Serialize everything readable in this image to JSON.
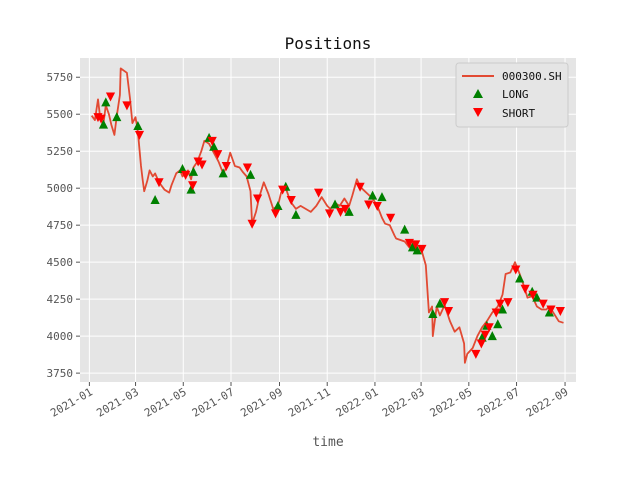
{
  "chart_data": {
    "type": "line",
    "title": "Positions",
    "xlabel": "time",
    "ylabel": "",
    "x_range": [
      "2020-12-20",
      "2022-09-15"
    ],
    "ylim": [
      3690,
      5880
    ],
    "grid": true,
    "legend_position": "top-right",
    "x_tick_labels": [
      "2021-01",
      "2021-03",
      "2021-05",
      "2021-07",
      "2021-09",
      "2021-11",
      "2022-01",
      "2022-03",
      "2022-05",
      "2022-07",
      "2022-09"
    ],
    "x_tick_dates": [
      "2021-01-01",
      "2021-03-01",
      "2021-05-01",
      "2021-07-01",
      "2021-09-01",
      "2021-11-01",
      "2022-01-01",
      "2022-03-01",
      "2022-05-01",
      "2022-07-01",
      "2022-09-01"
    ],
    "y_ticks": [
      3750,
      4000,
      4250,
      4500,
      4750,
      5000,
      5250,
      5500,
      5750
    ],
    "y_tick_labels": [
      "3750",
      "4000",
      "4250",
      "4500",
      "4750",
      "5000",
      "5250",
      "5500",
      "5750"
    ],
    "colors": {
      "line": "#e24a33",
      "long": "#008000",
      "short": "#ff0000",
      "background": "#e5e5e5",
      "grid": "#ffffff"
    },
    "series": [
      {
        "name": "000300.SH",
        "kind": "line",
        "x": [
          "2021-01-04",
          "2021-01-08",
          "2021-01-12",
          "2021-01-15",
          "2021-01-19",
          "2021-01-22",
          "2021-01-26",
          "2021-01-29",
          "2021-02-02",
          "2021-02-05",
          "2021-02-09",
          "2021-02-10",
          "2021-02-18",
          "2021-02-22",
          "2021-02-25",
          "2021-03-01",
          "2021-03-04",
          "2021-03-08",
          "2021-03-10",
          "2021-03-12",
          "2021-03-16",
          "2021-03-19",
          "2021-03-23",
          "2021-03-26",
          "2021-03-31",
          "2021-04-07",
          "2021-04-13",
          "2021-04-16",
          "2021-04-22",
          "2021-04-27",
          "2021-04-30",
          "2021-05-07",
          "2021-05-11",
          "2021-05-14",
          "2021-05-19",
          "2021-05-24",
          "2021-05-28",
          "2021-06-03",
          "2021-06-09",
          "2021-06-15",
          "2021-06-21",
          "2021-06-25",
          "2021-06-30",
          "2021-07-06",
          "2021-07-12",
          "2021-07-16",
          "2021-07-21",
          "2021-07-26",
          "2021-07-28",
          "2021-08-02",
          "2021-08-06",
          "2021-08-12",
          "2021-08-18",
          "2021-08-24",
          "2021-08-30",
          "2021-09-03",
          "2021-09-09",
          "2021-09-15",
          "2021-09-22",
          "2021-09-28",
          "2021-10-11",
          "2021-10-18",
          "2021-10-25",
          "2021-11-01",
          "2021-11-05",
          "2021-11-11",
          "2021-11-17",
          "2021-11-23",
          "2021-11-29",
          "2021-12-03",
          "2021-12-09",
          "2021-12-13",
          "2021-12-17",
          "2021-12-23",
          "2021-12-29",
          "2022-01-04",
          "2022-01-10",
          "2022-01-14",
          "2022-01-20",
          "2022-01-26",
          "2022-01-28",
          "2022-02-08",
          "2022-02-14",
          "2022-02-18",
          "2022-02-24",
          "2022-03-01",
          "2022-03-07",
          "2022-03-11",
          "2022-03-15",
          "2022-03-16",
          "2022-03-21",
          "2022-03-25",
          "2022-03-31",
          "2022-04-07",
          "2022-04-13",
          "2022-04-19",
          "2022-04-25",
          "2022-04-26",
          "2022-04-29",
          "2022-05-06",
          "2022-05-12",
          "2022-05-18",
          "2022-05-24",
          "2022-05-31",
          "2022-06-07",
          "2022-06-13",
          "2022-06-17",
          "2022-06-23",
          "2022-06-29",
          "2022-07-05",
          "2022-07-11",
          "2022-07-15",
          "2022-07-21",
          "2022-07-27",
          "2022-08-02",
          "2022-08-08",
          "2022-08-12",
          "2022-08-18",
          "2022-08-24",
          "2022-08-30"
        ],
        "y": [
          5490,
          5460,
          5600,
          5470,
          5440,
          5560,
          5500,
          5430,
          5360,
          5490,
          5630,
          5810,
          5780,
          5600,
          5440,
          5480,
          5380,
          5150,
          5060,
          4980,
          5050,
          5120,
          5080,
          5100,
          5040,
          4990,
          4970,
          5020,
          5100,
          5120,
          5080,
          5120,
          5060,
          5140,
          5180,
          5250,
          5320,
          5300,
          5240,
          5180,
          5100,
          5140,
          5240,
          5150,
          5140,
          5110,
          5080,
          4980,
          4760,
          4840,
          4940,
          5040,
          4960,
          4860,
          4880,
          4970,
          5000,
          4910,
          4860,
          4880,
          4840,
          4880,
          4940,
          4880,
          4860,
          4900,
          4880,
          4930,
          4880,
          4950,
          5060,
          5010,
          4990,
          4960,
          4930,
          4880,
          4800,
          4760,
          4750,
          4680,
          4660,
          4640,
          4600,
          4620,
          4560,
          4590,
          4480,
          4160,
          4200,
          4000,
          4200,
          4140,
          4210,
          4100,
          4030,
          4060,
          3950,
          3820,
          3880,
          3920,
          4000,
          4060,
          4100,
          4160,
          4200,
          4280,
          4420,
          4430,
          4500,
          4420,
          4330,
          4260,
          4270,
          4200,
          4180,
          4180,
          4200,
          4150,
          4100,
          4090
        ]
      },
      {
        "name": "LONG",
        "kind": "markers",
        "x": [
          "2021-01-19",
          "2021-01-22",
          "2021-02-05",
          "2021-03-04",
          "2021-03-26",
          "2021-04-30",
          "2021-05-11",
          "2021-05-14",
          "2021-06-03",
          "2021-06-09",
          "2021-06-21",
          "2021-07-26",
          "2021-08-30",
          "2021-09-09",
          "2021-09-22",
          "2021-11-11",
          "2021-11-29",
          "2021-12-29",
          "2022-01-10",
          "2022-02-08",
          "2022-02-18",
          "2022-02-24",
          "2022-03-16",
          "2022-03-25",
          "2022-05-18",
          "2022-05-24",
          "2022-05-31",
          "2022-06-07",
          "2022-06-13",
          "2022-07-05",
          "2022-07-21",
          "2022-07-27",
          "2022-08-12"
        ],
        "y": [
          5430,
          5580,
          5480,
          5420,
          4920,
          5130,
          4990,
          5110,
          5340,
          5280,
          5100,
          5090,
          4880,
          5010,
          4820,
          4890,
          4840,
          4950,
          4940,
          4720,
          4600,
          4580,
          4150,
          4220,
          3990,
          4070,
          4000,
          4080,
          4180,
          4390,
          4300,
          4260,
          4160
        ]
      },
      {
        "name": "SHORT",
        "kind": "markers",
        "x": [
          "2021-01-12",
          "2021-01-16",
          "2021-01-28",
          "2021-02-18",
          "2021-03-06",
          "2021-03-31",
          "2021-05-04",
          "2021-05-13",
          "2021-05-20",
          "2021-05-25",
          "2021-06-07",
          "2021-06-14",
          "2021-06-25",
          "2021-07-22",
          "2021-07-28",
          "2021-08-04",
          "2021-08-27",
          "2021-09-05",
          "2021-09-16",
          "2021-10-21",
          "2021-11-04",
          "2021-11-18",
          "2021-11-24",
          "2021-12-13",
          "2021-12-24",
          "2022-01-04",
          "2022-01-21",
          "2022-02-14",
          "2022-02-22",
          "2022-03-02",
          "2022-03-31",
          "2022-04-05",
          "2022-05-10",
          "2022-05-17",
          "2022-05-22",
          "2022-05-27",
          "2022-06-05",
          "2022-06-10",
          "2022-06-20",
          "2022-06-30",
          "2022-07-12",
          "2022-07-22",
          "2022-08-04",
          "2022-08-14",
          "2022-08-26"
        ],
        "y": [
          5480,
          5470,
          5620,
          5560,
          5360,
          5040,
          5090,
          5020,
          5180,
          5160,
          5320,
          5230,
          5150,
          5140,
          4760,
          4930,
          4830,
          4990,
          4920,
          4970,
          4830,
          4840,
          4860,
          5010,
          4890,
          4880,
          4800,
          4630,
          4620,
          4590,
          4230,
          4170,
          3880,
          3950,
          4010,
          4060,
          4160,
          4220,
          4230,
          4450,
          4320,
          4280,
          4220,
          4180,
          4170
        ]
      }
    ]
  }
}
